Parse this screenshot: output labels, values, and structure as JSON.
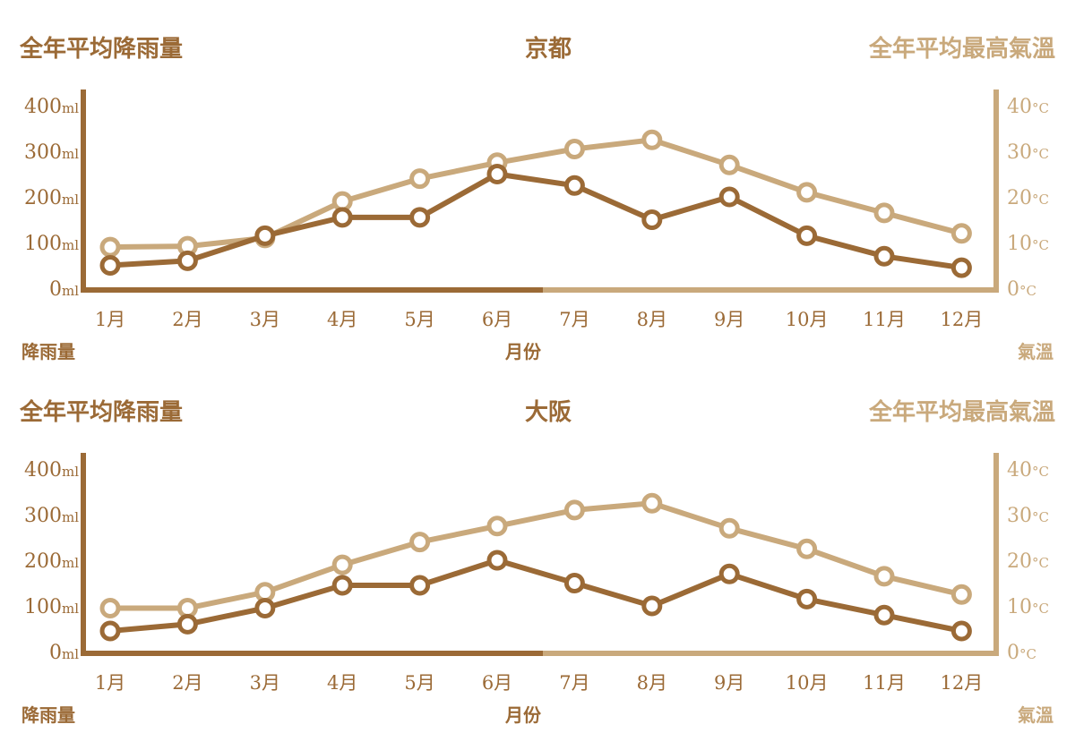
{
  "colors": {
    "rain": "#9b6a36",
    "temp": "#c9a97c"
  },
  "chart_data": [
    {
      "type": "line",
      "title": "京都",
      "left_title": "全年平均降雨量",
      "right_title": "全年平均最高氣溫",
      "xlabel": "月份",
      "ylabel_left": "降雨量",
      "ylabel_right": "氣溫",
      "categories": [
        "1月",
        "2月",
        "3月",
        "4月",
        "5月",
        "6月",
        "7月",
        "8月",
        "9月",
        "10月",
        "11月",
        "12月"
      ],
      "y_left": {
        "ticks": [
          "0",
          "100",
          "200",
          "300",
          "400"
        ],
        "unit": "ml",
        "range": [
          0,
          400
        ]
      },
      "y_right": {
        "ticks": [
          "0",
          "10",
          "20",
          "30",
          "40"
        ],
        "unit": "°C",
        "range": [
          0,
          40
        ]
      },
      "series": [
        {
          "axis": "left",
          "values": [
            50,
            60,
            115,
            155,
            155,
            250,
            225,
            150,
            200,
            115,
            70,
            45
          ]
        },
        {
          "axis": "right",
          "values": [
            9,
            9.2,
            11,
            19,
            24,
            27.5,
            30.5,
            32.5,
            27,
            21,
            16.5,
            12
          ]
        }
      ]
    },
    {
      "type": "line",
      "title": "大阪",
      "left_title": "全年平均降雨量",
      "right_title": "全年平均最高氣溫",
      "xlabel": "月份",
      "ylabel_left": "降雨量",
      "ylabel_right": "氣溫",
      "categories": [
        "1月",
        "2月",
        "3月",
        "4月",
        "5月",
        "6月",
        "7月",
        "8月",
        "9月",
        "10月",
        "11月",
        "12月"
      ],
      "y_left": {
        "ticks": [
          "0",
          "100",
          "200",
          "300",
          "400"
        ],
        "unit": "ml",
        "range": [
          0,
          400
        ]
      },
      "y_right": {
        "ticks": [
          "0",
          "10",
          "20",
          "30",
          "40"
        ],
        "unit": "°C",
        "range": [
          0,
          40
        ]
      },
      "series": [
        {
          "axis": "left",
          "values": [
            45,
            60,
            95,
            145,
            145,
            200,
            150,
            100,
            170,
            115,
            80,
            45
          ]
        },
        {
          "axis": "right",
          "values": [
            9.5,
            9.5,
            13,
            19,
            24,
            27.5,
            31,
            32.5,
            27,
            22.5,
            16.5,
            12.5
          ]
        }
      ]
    }
  ]
}
